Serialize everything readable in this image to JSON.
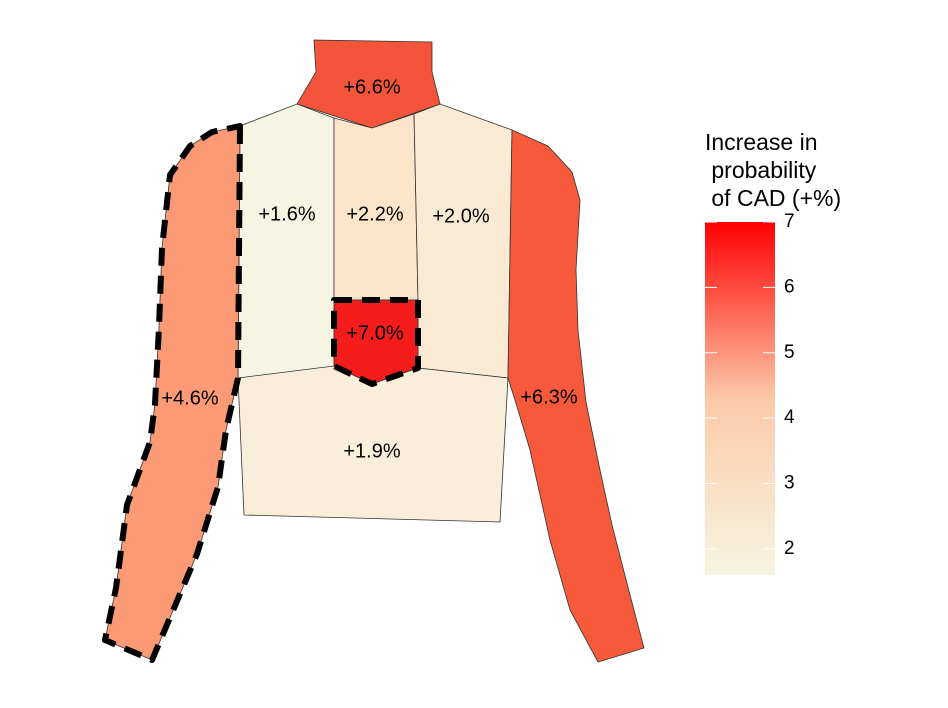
{
  "regions": [
    {
      "id": "neck",
      "label": "+6.6%",
      "value": 6.6,
      "color": "#F4553A"
    },
    {
      "id": "upper-left",
      "label": "+1.6%",
      "value": 1.6,
      "color": "#F6F5E1"
    },
    {
      "id": "upper-center",
      "label": "+2.2%",
      "value": 2.2,
      "color": "#FCE5CA"
    },
    {
      "id": "upper-right",
      "label": "+2.0%",
      "value": 2.0,
      "color": "#FAEAD3"
    },
    {
      "id": "chest-center",
      "label": "+7.0%",
      "value": 7.0,
      "color": "#F51C1C"
    },
    {
      "id": "lower-torso",
      "label": "+1.9%",
      "value": 1.9,
      "color": "#F8EEDA"
    },
    {
      "id": "left-arm",
      "label": "+4.6%",
      "value": 4.6,
      "color": "#FB9A75"
    },
    {
      "id": "right-arm",
      "label": "+6.3%",
      "value": 6.3,
      "color": "#F65A3B"
    }
  ],
  "highlighted": [
    "left-arm",
    "chest-center"
  ],
  "legend": {
    "title_lines": [
      "Increase in",
      " probability",
      " of CAD (+%)"
    ],
    "ticks": [
      2,
      3,
      4,
      5,
      6,
      7
    ],
    "range": [
      1.6,
      7.0
    ],
    "low_color": "#F6F5E1",
    "high_color": "#FF0000"
  }
}
